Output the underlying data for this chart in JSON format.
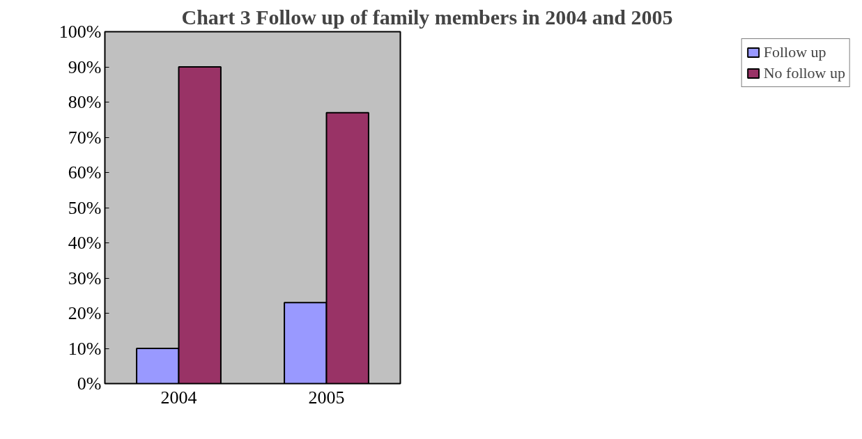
{
  "chart_data": {
    "type": "bar",
    "title": "Chart 3 Follow up of family members in 2004 and 2005",
    "categories": [
      "2004",
      "2005"
    ],
    "series": [
      {
        "name": "Follow up",
        "color": "#9999ff",
        "values": [
          10,
          23
        ]
      },
      {
        "name": "No follow up",
        "color": "#993366",
        "values": [
          90,
          77
        ]
      }
    ],
    "ylim": [
      0,
      100
    ],
    "yticks": [
      {
        "value": 0,
        "label": "0%"
      },
      {
        "value": 10,
        "label": "10%"
      },
      {
        "value": 20,
        "label": "20%"
      },
      {
        "value": 30,
        "label": "30%"
      },
      {
        "value": 40,
        "label": "40%"
      },
      {
        "value": 50,
        "label": "50%"
      },
      {
        "value": 60,
        "label": "60%"
      },
      {
        "value": 70,
        "label": "70%"
      },
      {
        "value": 80,
        "label": "80%"
      },
      {
        "value": 90,
        "label": "90%"
      },
      {
        "value": 100,
        "label": "100%"
      }
    ],
    "grid": false,
    "legend": "right"
  }
}
